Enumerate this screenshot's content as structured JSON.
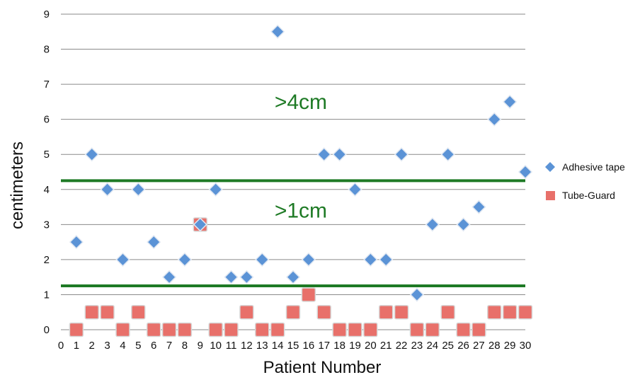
{
  "chart_data": {
    "type": "scatter",
    "xlabel": "Patient Number",
    "ylabel": "centimeters",
    "xlim": [
      0,
      30
    ],
    "ylim": [
      0,
      9
    ],
    "x_ticks": [
      "0",
      "1",
      "2",
      "3",
      "4",
      "5",
      "6",
      "7",
      "8",
      "9",
      "10",
      "11",
      "12",
      "13",
      "14",
      "15",
      "16",
      "17",
      "18",
      "19",
      "20",
      "21",
      "22",
      "23",
      "24",
      "25",
      "26",
      "27",
      "28",
      "29",
      "30"
    ],
    "y_ticks": [
      "0",
      "1",
      "2",
      "3",
      "4",
      "5",
      "6",
      "7",
      "8",
      "9"
    ],
    "grid": true,
    "legend_position": "right",
    "series": [
      {
        "name": "Adhesive tape",
        "marker": "diamond",
        "color": "#5b93d6",
        "x": [
          1,
          2,
          3,
          4,
          5,
          6,
          7,
          8,
          9,
          10,
          11,
          12,
          13,
          14,
          15,
          16,
          17,
          18,
          19,
          20,
          21,
          22,
          23,
          24,
          25,
          26,
          27,
          28,
          29,
          30
        ],
        "y": [
          2.5,
          5,
          4,
          2,
          4,
          2.5,
          1.5,
          2,
          3,
          4,
          1.5,
          1.5,
          2,
          8.5,
          1.5,
          2,
          5,
          5,
          4,
          2,
          2,
          5,
          1,
          3,
          5,
          3,
          3.5,
          6,
          6.5,
          4.5
        ]
      },
      {
        "name": "Tube-Guard",
        "marker": "square",
        "color": "#e8706a",
        "x": [
          1,
          2,
          3,
          4,
          5,
          6,
          7,
          8,
          9,
          10,
          11,
          12,
          13,
          14,
          15,
          16,
          17,
          18,
          19,
          20,
          21,
          22,
          23,
          24,
          25,
          26,
          27,
          28,
          29,
          30
        ],
        "y": [
          0,
          0.5,
          0.5,
          0,
          0.5,
          0,
          0,
          0,
          3,
          0,
          0,
          0.5,
          0,
          0,
          0.5,
          1,
          0.5,
          0,
          0,
          0,
          0.5,
          0.5,
          0,
          0,
          0.5,
          0,
          0,
          0.5,
          0.5,
          0.5
        ]
      }
    ],
    "reference_lines": [
      {
        "y": 4.25,
        "color": "#1e7a25"
      },
      {
        "y": 1.25,
        "color": "#1e7a25"
      }
    ],
    "annotations": [
      {
        "text": ">4cm",
        "x": 15.5,
        "y": 6.5,
        "color": "#1e7a25"
      },
      {
        "text": ">1cm",
        "x": 15.5,
        "y": 3.4,
        "color": "#1e7a25"
      }
    ]
  }
}
